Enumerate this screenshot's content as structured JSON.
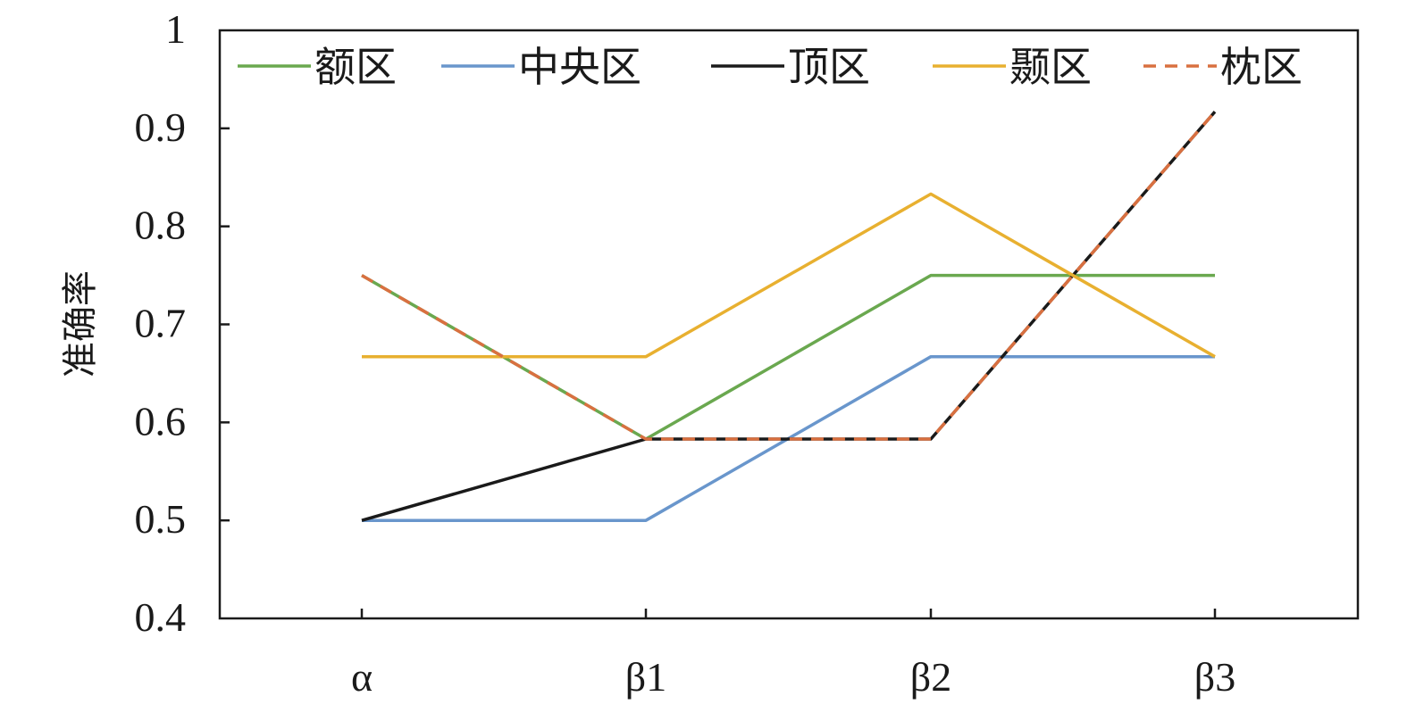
{
  "chart_data": {
    "type": "line",
    "ylabel": "准确率",
    "xlabel": "",
    "categories": [
      "α",
      "β1",
      "β2",
      "β3"
    ],
    "ylim": [
      0.4,
      1.0
    ],
    "yticks": [
      0.4,
      0.5,
      0.6,
      0.7,
      0.8,
      0.9,
      1.0
    ],
    "ytick_labels": [
      "0.4",
      "0.5",
      "0.6",
      "0.7",
      "0.8",
      "0.9",
      "1"
    ],
    "legend_position": "top",
    "grid": false,
    "series": [
      {
        "name": "额区",
        "color": "#6aa84f",
        "dash": "solid",
        "values": [
          0.75,
          0.583,
          0.75,
          0.75
        ]
      },
      {
        "name": "中央区",
        "color": "#6996cc",
        "dash": "solid",
        "values": [
          0.5,
          0.5,
          0.667,
          0.667
        ]
      },
      {
        "name": "顶区",
        "color": "#1a1a1a",
        "dash": "solid",
        "values": [
          0.5,
          0.583,
          0.583,
          0.917
        ]
      },
      {
        "name": "颞区",
        "color": "#e8b030",
        "dash": "solid",
        "values": [
          0.667,
          0.667,
          0.833,
          0.667
        ]
      },
      {
        "name": "枕区",
        "color": "#d97040",
        "dash": "dashed",
        "values": [
          0.75,
          0.583,
          0.583,
          0.917
        ]
      }
    ]
  }
}
